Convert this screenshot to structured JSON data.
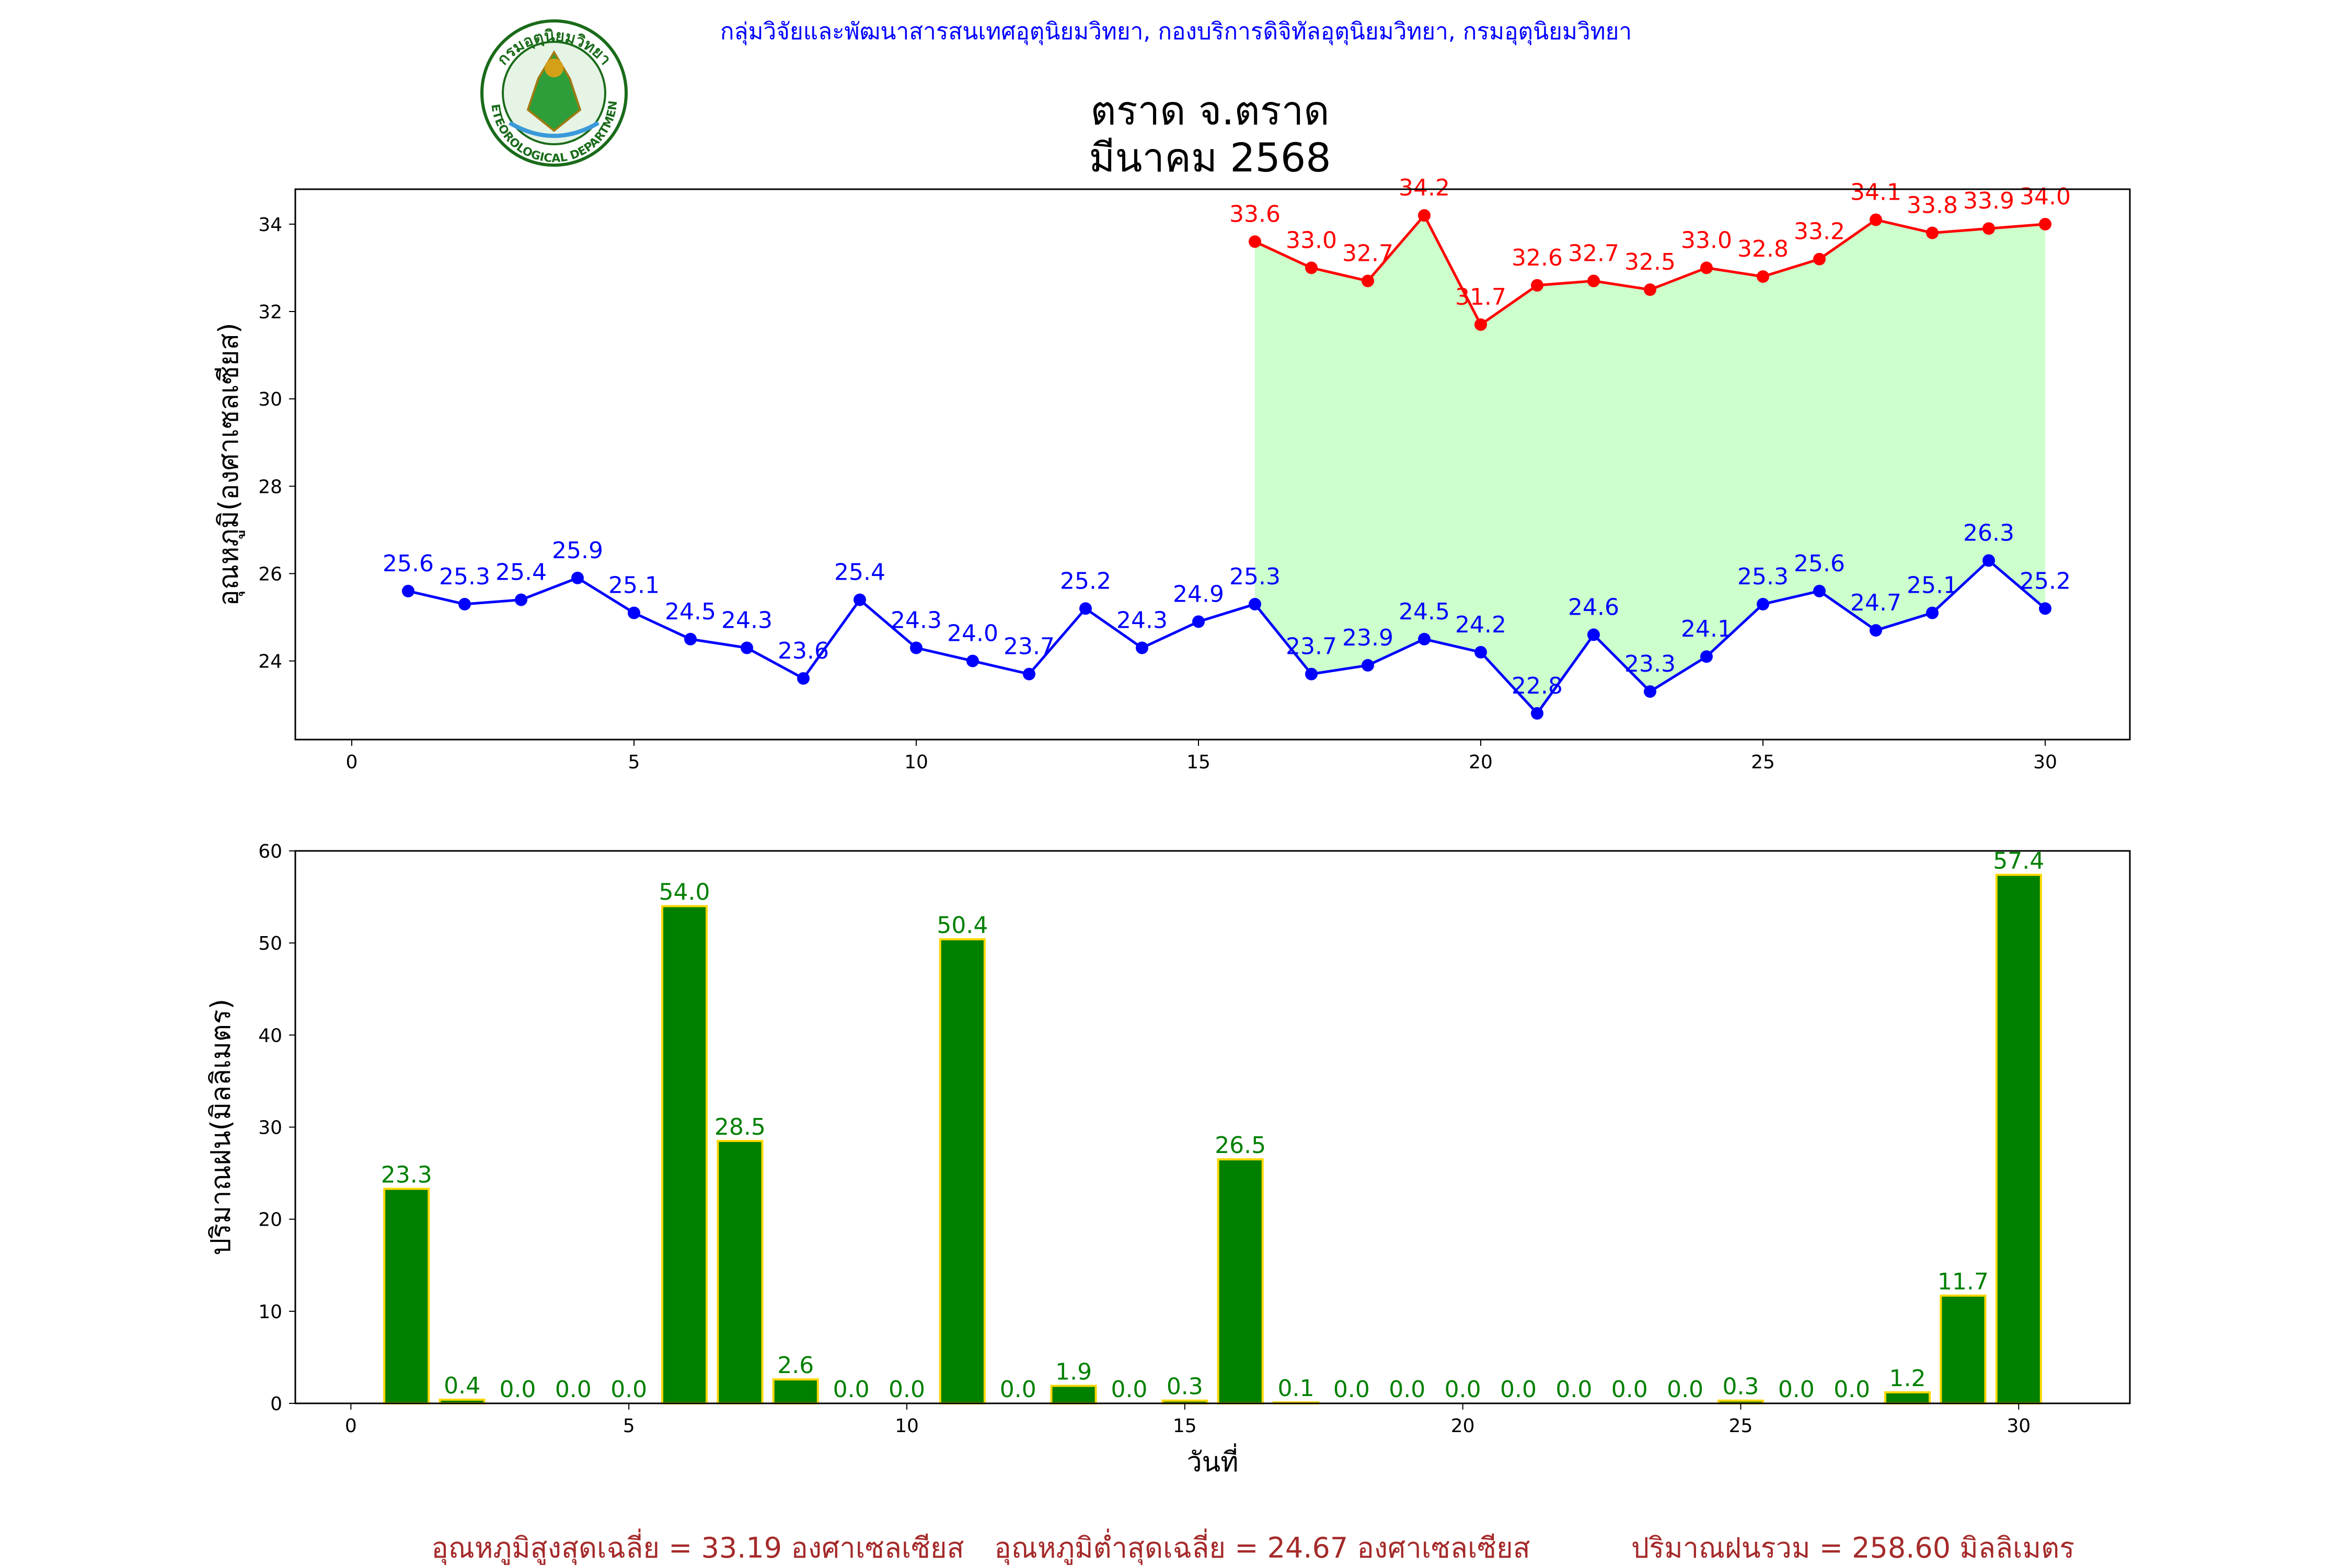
{
  "header": {
    "agency": "กลุ่มวิจัยและพัฒนาสารสนเทศอุตุนิยมวิทยา, กองบริการดิจิทัลอุตุนิยมวิทยา, กรมอุตุนิยมวิทยา",
    "agency_color": "#0000ff",
    "logo_text": "METEOROLOGICAL DEPARTMENT",
    "logo_text_top": "กรมอุตุนิยมวิทยา"
  },
  "title": {
    "line1": "ตราด จ.ตราด",
    "line2": "มีนาคม 2568"
  },
  "chart_data": [
    {
      "type": "line",
      "ylabel": "อุณหภูมิ(องศาเซลเซียส)",
      "xlim": [
        -1,
        31.5
      ],
      "ylim": [
        22.2,
        34.8
      ],
      "xticks": [
        0,
        5,
        10,
        15,
        20,
        25,
        30
      ],
      "yticks": [
        24,
        26,
        28,
        30,
        32,
        34
      ],
      "grid": false,
      "fill_color": "#ccffcc",
      "series": [
        {
          "color": "#ff0000",
          "x": [
            16,
            17,
            18,
            19,
            20,
            21,
            22,
            23,
            24,
            25,
            26,
            27,
            28,
            29,
            30
          ],
          "values": [
            33.6,
            33.0,
            32.7,
            34.2,
            31.7,
            32.6,
            32.7,
            32.5,
            33.0,
            32.8,
            33.2,
            34.1,
            33.8,
            33.9,
            34.0
          ]
        },
        {
          "color": "#0000ff",
          "x": [
            1,
            2,
            3,
            4,
            5,
            6,
            7,
            8,
            9,
            10,
            11,
            12,
            13,
            14,
            15,
            16,
            17,
            18,
            19,
            20,
            21,
            22,
            23,
            24,
            25,
            26,
            27,
            28,
            29,
            30
          ],
          "values": [
            25.6,
            25.3,
            25.4,
            25.9,
            25.1,
            24.5,
            24.3,
            23.6,
            25.4,
            24.3,
            24.0,
            23.7,
            25.2,
            24.3,
            24.9,
            25.3,
            23.7,
            23.9,
            24.5,
            24.2,
            22.8,
            24.6,
            23.3,
            24.1,
            25.3,
            25.6,
            24.7,
            25.1,
            26.3,
            25.2
          ]
        }
      ]
    },
    {
      "type": "bar",
      "ylabel": "ปริมาณฝน(มิลลิเมตร)",
      "xlabel": "วันที่",
      "xlim": [
        -1,
        32
      ],
      "ylim": [
        0,
        60
      ],
      "xticks": [
        0,
        5,
        10,
        15,
        20,
        25,
        30
      ],
      "yticks": [
        0,
        10,
        20,
        30,
        40,
        50,
        60
      ],
      "grid": false,
      "bar_color": "#008000",
      "edge_color": "#ffd700",
      "label_color": "#008000",
      "x": [
        1,
        2,
        3,
        4,
        5,
        6,
        7,
        8,
        9,
        10,
        11,
        12,
        13,
        14,
        15,
        16,
        17,
        18,
        19,
        20,
        21,
        22,
        23,
        24,
        25,
        26,
        27,
        28,
        29,
        30
      ],
      "values": [
        23.3,
        0.4,
        0.0,
        0.0,
        0.0,
        54.0,
        28.5,
        2.6,
        0.0,
        0.0,
        50.4,
        0.0,
        1.9,
        0.0,
        0.3,
        26.5,
        0.1,
        0.0,
        0.0,
        0.0,
        0.0,
        0.0,
        0.0,
        0.0,
        0.3,
        0.0,
        0.0,
        1.2,
        11.7,
        57.4
      ]
    }
  ],
  "summary": {
    "color": "#a52a2a",
    "avg_max": "อุณหภูมิสูงสุดเฉลี่ย = 33.19 องศาเซลเซียส",
    "avg_min": "อุณหภูมิต่ำสุดเฉลี่ย = 24.67 องศาเซลเซียส",
    "total_rain": "ปริมาณฝนรวม = 258.60 มิลลิเมตร"
  }
}
